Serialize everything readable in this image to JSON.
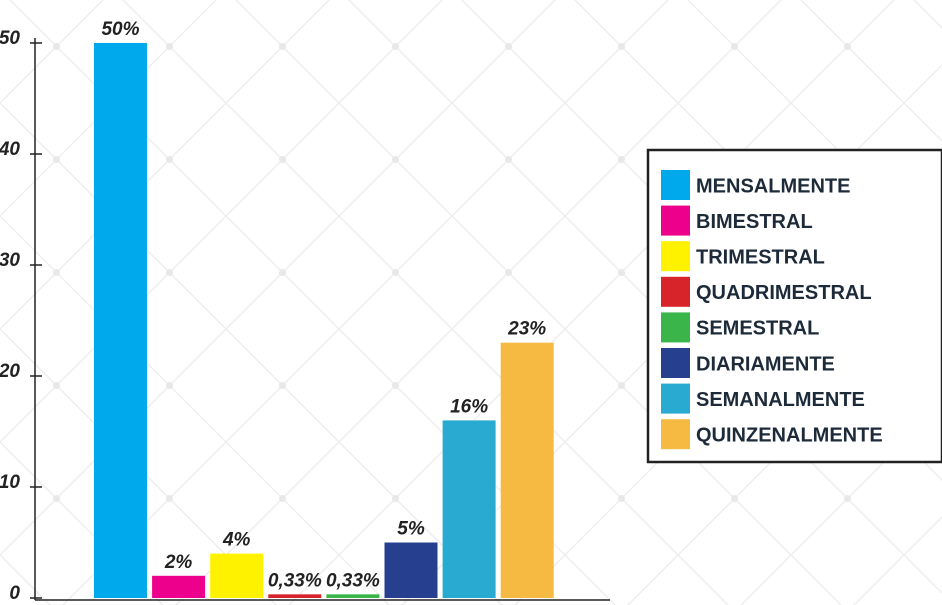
{
  "chart_data": {
    "type": "bar",
    "categories": [
      "MENSALMENTE",
      "BIMESTRAL",
      "TRIMESTRAL",
      "QUADRIMESTRAL",
      "SEMESTRAL",
      "DIARIAMENTE",
      "SEMANALMENTE",
      "QUINZENALMENTE"
    ],
    "values": [
      50,
      2,
      4,
      0.33,
      0.33,
      5,
      16,
      23
    ],
    "value_labels": [
      "50%",
      "2%",
      "4%",
      "0,33%",
      "0,33%",
      "5%",
      "16%",
      "23%"
    ],
    "colors": [
      "#00a9ec",
      "#ec008c",
      "#fff200",
      "#d7232a",
      "#3ab54a",
      "#263f8f",
      "#29abd1",
      "#f6b942"
    ],
    "ylim": [
      0,
      50
    ],
    "yticks": [
      0,
      10,
      20,
      30,
      40,
      50
    ],
    "legend": "right"
  }
}
